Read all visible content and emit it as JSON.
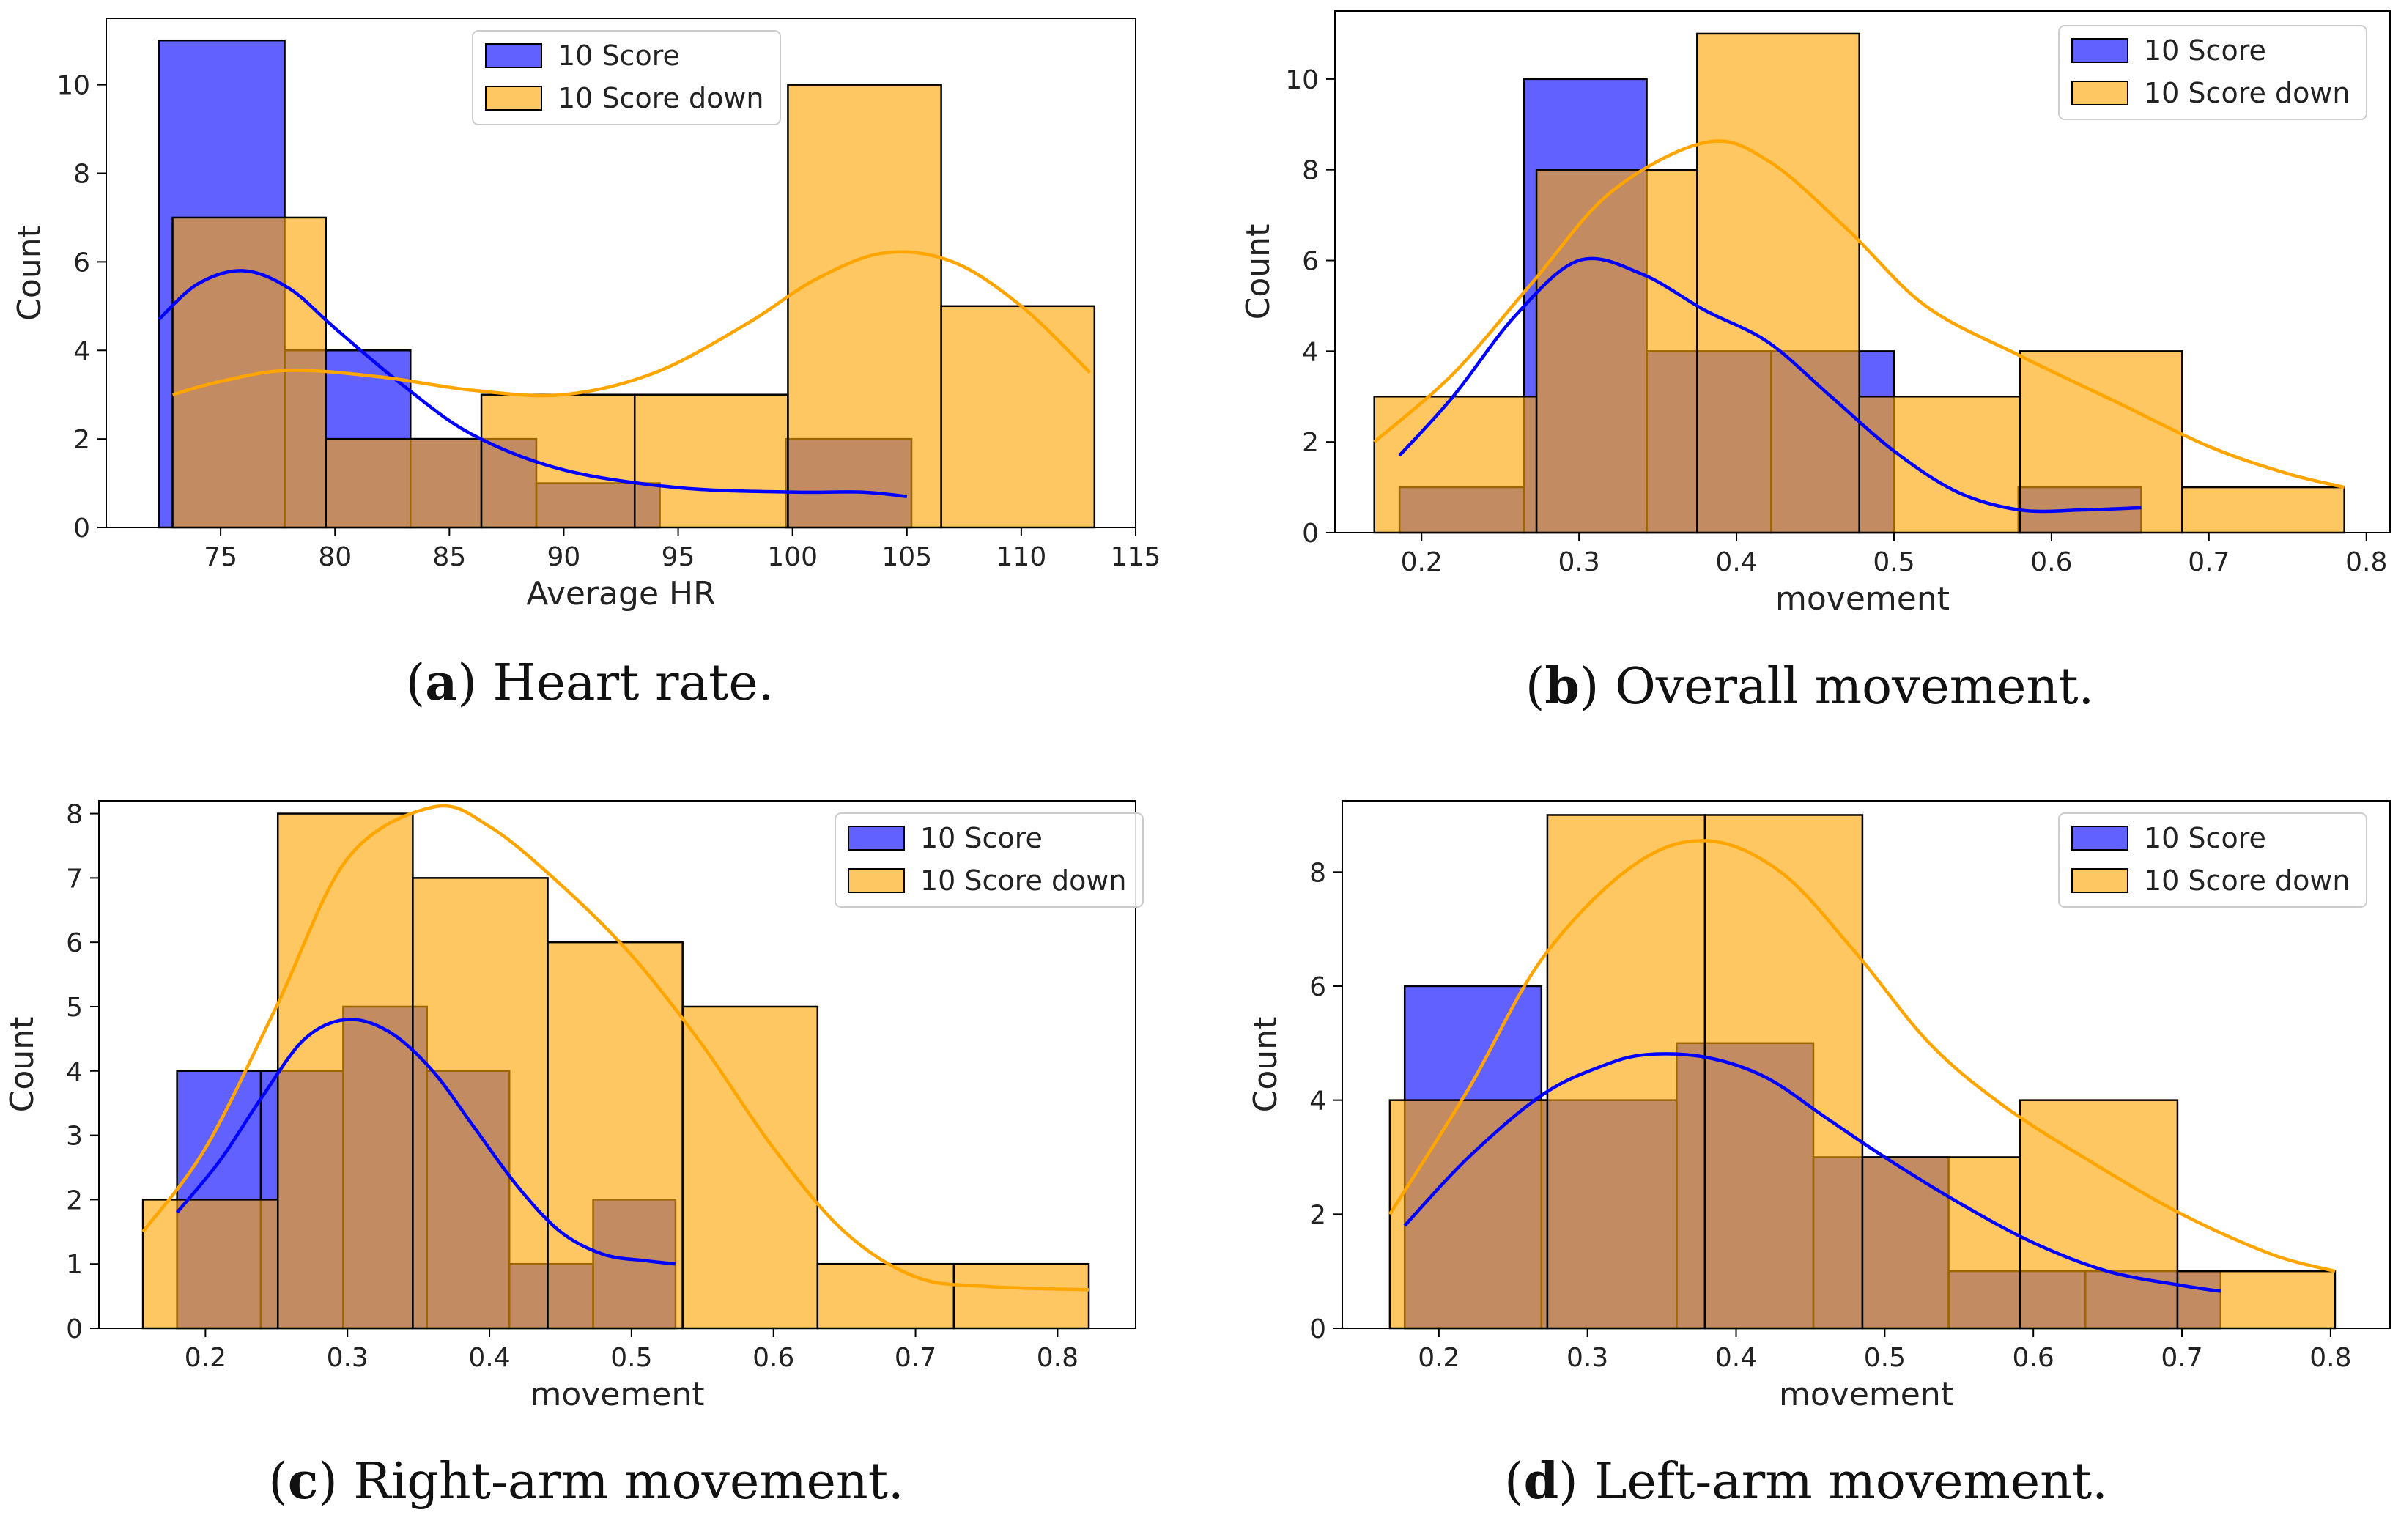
{
  "chart_data": [
    {
      "id": "a",
      "type": "histogram",
      "caption_letter": "a",
      "caption_text": "Heart rate.",
      "xlabel": "Average HR",
      "ylabel": "Count",
      "xlim": [
        70,
        115
      ],
      "ylim": [
        0,
        11.5
      ],
      "xticks": [
        75,
        80,
        85,
        90,
        95,
        100,
        105,
        110,
        115
      ],
      "yticks": [
        0,
        2,
        4,
        6,
        8,
        10
      ],
      "legend": [
        "10 Score",
        "10 Score down"
      ],
      "legend_position": "top-center",
      "series": [
        {
          "name": "10 Score",
          "color": "#0000ff",
          "bins": [
            {
              "x0": 72.3,
              "x1": 77.8,
              "count": 11
            },
            {
              "x0": 77.8,
              "x1": 83.3,
              "count": 4
            },
            {
              "x0": 83.3,
              "x1": 88.8,
              "count": 2
            },
            {
              "x0": 88.8,
              "x1": 94.2,
              "count": 1
            },
            {
              "x0": 94.2,
              "x1": 99.7,
              "count": 0
            },
            {
              "x0": 99.7,
              "x1": 105.2,
              "count": 2
            }
          ],
          "kde": [
            [
              72.3,
              4.7
            ],
            [
              74,
              5.5
            ],
            [
              76,
              5.8
            ],
            [
              78,
              5.4
            ],
            [
              80,
              4.5
            ],
            [
              83,
              3.2
            ],
            [
              86,
              2.1
            ],
            [
              90,
              1.3
            ],
            [
              95,
              0.9
            ],
            [
              100,
              0.8
            ],
            [
              103,
              0.8
            ],
            [
              105,
              0.7
            ]
          ]
        },
        {
          "name": "10 Score down",
          "color": "#ffa500",
          "bins": [
            {
              "x0": 72.9,
              "x1": 79.6,
              "count": 7
            },
            {
              "x0": 79.6,
              "x1": 86.4,
              "count": 2
            },
            {
              "x0": 86.4,
              "x1": 93.1,
              "count": 3
            },
            {
              "x0": 93.1,
              "x1": 99.8,
              "count": 3
            },
            {
              "x0": 99.8,
              "x1": 106.5,
              "count": 10
            },
            {
              "x0": 106.5,
              "x1": 113.2,
              "count": 5
            }
          ],
          "kde": [
            [
              72.9,
              3.0
            ],
            [
              75,
              3.3
            ],
            [
              78,
              3.55
            ],
            [
              82,
              3.4
            ],
            [
              86,
              3.1
            ],
            [
              90,
              3.0
            ],
            [
              94,
              3.5
            ],
            [
              98,
              4.6
            ],
            [
              101,
              5.6
            ],
            [
              104,
              6.2
            ],
            [
              107,
              6.0
            ],
            [
              110,
              5.0
            ],
            [
              113,
              3.5
            ]
          ]
        }
      ]
    },
    {
      "id": "b",
      "type": "histogram",
      "caption_letter": "b",
      "caption_text": "Overall movement.",
      "xlabel": "movement",
      "ylabel": "Count",
      "xlim": [
        0.145,
        0.815
      ],
      "ylim": [
        0,
        11.5
      ],
      "xticks": [
        0.2,
        0.3,
        0.4,
        0.5,
        0.6,
        0.7,
        0.8
      ],
      "yticks": [
        0,
        2,
        4,
        6,
        8,
        10
      ],
      "legend": [
        "10 Score",
        "10 Score down"
      ],
      "legend_position": "top-right",
      "series": [
        {
          "name": "10 Score",
          "color": "#0000ff",
          "bins": [
            {
              "x0": 0.186,
              "x1": 0.265,
              "count": 1
            },
            {
              "x0": 0.265,
              "x1": 0.343,
              "count": 10
            },
            {
              "x0": 0.343,
              "x1": 0.422,
              "count": 4
            },
            {
              "x0": 0.422,
              "x1": 0.5,
              "count": 4
            },
            {
              "x0": 0.5,
              "x1": 0.579,
              "count": 0
            },
            {
              "x0": 0.579,
              "x1": 0.657,
              "count": 1
            }
          ],
          "kde": [
            [
              0.186,
              1.7
            ],
            [
              0.22,
              3.0
            ],
            [
              0.26,
              4.8
            ],
            [
              0.3,
              6.0
            ],
            [
              0.34,
              5.7
            ],
            [
              0.38,
              4.9
            ],
            [
              0.42,
              4.2
            ],
            [
              0.46,
              3.0
            ],
            [
              0.5,
              1.8
            ],
            [
              0.54,
              0.9
            ],
            [
              0.58,
              0.5
            ],
            [
              0.62,
              0.5
            ],
            [
              0.657,
              0.55
            ]
          ]
        },
        {
          "name": "10 Score down",
          "color": "#ffa500",
          "bins": [
            {
              "x0": 0.17,
              "x1": 0.273,
              "count": 3
            },
            {
              "x0": 0.273,
              "x1": 0.375,
              "count": 8
            },
            {
              "x0": 0.375,
              "x1": 0.478,
              "count": 11
            },
            {
              "x0": 0.478,
              "x1": 0.58,
              "count": 3
            },
            {
              "x0": 0.58,
              "x1": 0.683,
              "count": 4
            },
            {
              "x0": 0.683,
              "x1": 0.786,
              "count": 1
            }
          ],
          "kde": [
            [
              0.17,
              2.0
            ],
            [
              0.22,
              3.5
            ],
            [
              0.27,
              5.5
            ],
            [
              0.32,
              7.5
            ],
            [
              0.38,
              8.6
            ],
            [
              0.42,
              8.2
            ],
            [
              0.47,
              6.7
            ],
            [
              0.52,
              5.0
            ],
            [
              0.58,
              3.9
            ],
            [
              0.64,
              2.9
            ],
            [
              0.7,
              1.9
            ],
            [
              0.75,
              1.3
            ],
            [
              0.786,
              1.0
            ]
          ]
        }
      ]
    },
    {
      "id": "c",
      "type": "histogram",
      "caption_letter": "c",
      "caption_text": "Right-arm movement.",
      "xlabel": "movement",
      "ylabel": "Count",
      "xlim": [
        0.125,
        0.855
      ],
      "ylim": [
        0,
        8.2
      ],
      "xticks": [
        0.2,
        0.3,
        0.4,
        0.5,
        0.6,
        0.7,
        0.8
      ],
      "yticks": [
        0,
        1,
        2,
        3,
        4,
        5,
        6,
        7,
        8
      ],
      "legend": [
        "10 Score",
        "10 Score down"
      ],
      "legend_position": "top-right",
      "series": [
        {
          "name": "10 Score",
          "color": "#0000ff",
          "bins": [
            {
              "x0": 0.18,
              "x1": 0.239,
              "count": 4
            },
            {
              "x0": 0.239,
              "x1": 0.297,
              "count": 4
            },
            {
              "x0": 0.297,
              "x1": 0.356,
              "count": 5
            },
            {
              "x0": 0.356,
              "x1": 0.414,
              "count": 4
            },
            {
              "x0": 0.414,
              "x1": 0.473,
              "count": 1
            },
            {
              "x0": 0.473,
              "x1": 0.531,
              "count": 2
            }
          ],
          "kde": [
            [
              0.18,
              1.8
            ],
            [
              0.21,
              2.6
            ],
            [
              0.24,
              3.6
            ],
            [
              0.27,
              4.5
            ],
            [
              0.3,
              4.8
            ],
            [
              0.33,
              4.6
            ],
            [
              0.36,
              4.0
            ],
            [
              0.39,
              3.1
            ],
            [
              0.42,
              2.2
            ],
            [
              0.45,
              1.5
            ],
            [
              0.48,
              1.15
            ],
            [
              0.51,
              1.05
            ],
            [
              0.531,
              1.0
            ]
          ]
        },
        {
          "name": "10 Score down",
          "color": "#ffa500",
          "bins": [
            {
              "x0": 0.156,
              "x1": 0.251,
              "count": 2
            },
            {
              "x0": 0.251,
              "x1": 0.346,
              "count": 8
            },
            {
              "x0": 0.346,
              "x1": 0.441,
              "count": 7
            },
            {
              "x0": 0.441,
              "x1": 0.536,
              "count": 6
            },
            {
              "x0": 0.536,
              "x1": 0.631,
              "count": 5
            },
            {
              "x0": 0.631,
              "x1": 0.727,
              "count": 1
            },
            {
              "x0": 0.727,
              "x1": 0.822,
              "count": 1
            }
          ],
          "kde": [
            [
              0.156,
              1.5
            ],
            [
              0.2,
              2.8
            ],
            [
              0.25,
              5.0
            ],
            [
              0.3,
              7.3
            ],
            [
              0.36,
              8.1
            ],
            [
              0.4,
              7.8
            ],
            [
              0.45,
              6.9
            ],
            [
              0.5,
              5.8
            ],
            [
              0.55,
              4.4
            ],
            [
              0.6,
              2.8
            ],
            [
              0.65,
              1.5
            ],
            [
              0.7,
              0.8
            ],
            [
              0.75,
              0.65
            ],
            [
              0.822,
              0.6
            ]
          ]
        }
      ]
    },
    {
      "id": "d",
      "type": "histogram",
      "caption_letter": "d",
      "caption_text": "Left-arm movement.",
      "xlabel": "movement",
      "ylabel": "Count",
      "xlim": [
        0.135,
        0.84
      ],
      "ylim": [
        0,
        9.25
      ],
      "xticks": [
        0.2,
        0.3,
        0.4,
        0.5,
        0.6,
        0.7,
        0.8
      ],
      "yticks": [
        0,
        2,
        4,
        6,
        8
      ],
      "legend": [
        "10 Score",
        "10 Score down"
      ],
      "legend_position": "top-right",
      "series": [
        {
          "name": "10 Score",
          "color": "#0000ff",
          "bins": [
            {
              "x0": 0.177,
              "x1": 0.269,
              "count": 6
            },
            {
              "x0": 0.269,
              "x1": 0.36,
              "count": 4
            },
            {
              "x0": 0.36,
              "x1": 0.452,
              "count": 5
            },
            {
              "x0": 0.452,
              "x1": 0.543,
              "count": 3
            },
            {
              "x0": 0.543,
              "x1": 0.635,
              "count": 1
            },
            {
              "x0": 0.635,
              "x1": 0.726,
              "count": 1
            }
          ],
          "kde": [
            [
              0.177,
              1.8
            ],
            [
              0.22,
              3.0
            ],
            [
              0.27,
              4.1
            ],
            [
              0.31,
              4.6
            ],
            [
              0.34,
              4.8
            ],
            [
              0.38,
              4.75
            ],
            [
              0.42,
              4.4
            ],
            [
              0.46,
              3.7
            ],
            [
              0.5,
              3.0
            ],
            [
              0.55,
              2.2
            ],
            [
              0.6,
              1.5
            ],
            [
              0.65,
              1.0
            ],
            [
              0.7,
              0.75
            ],
            [
              0.726,
              0.65
            ]
          ]
        },
        {
          "name": "10 Score down",
          "color": "#ffa500",
          "bins": [
            {
              "x0": 0.167,
              "x1": 0.273,
              "count": 4
            },
            {
              "x0": 0.273,
              "x1": 0.379,
              "count": 9
            },
            {
              "x0": 0.379,
              "x1": 0.485,
              "count": 9
            },
            {
              "x0": 0.485,
              "x1": 0.591,
              "count": 3
            },
            {
              "x0": 0.591,
              "x1": 0.697,
              "count": 4
            },
            {
              "x0": 0.697,
              "x1": 0.803,
              "count": 1
            }
          ],
          "kde": [
            [
              0.167,
              2.0
            ],
            [
              0.22,
              4.2
            ],
            [
              0.27,
              6.5
            ],
            [
              0.33,
              8.1
            ],
            [
              0.38,
              8.55
            ],
            [
              0.43,
              8.0
            ],
            [
              0.48,
              6.6
            ],
            [
              0.53,
              5.0
            ],
            [
              0.58,
              3.9
            ],
            [
              0.64,
              2.9
            ],
            [
              0.7,
              2.0
            ],
            [
              0.76,
              1.3
            ],
            [
              0.803,
              1.0
            ]
          ]
        }
      ]
    }
  ]
}
